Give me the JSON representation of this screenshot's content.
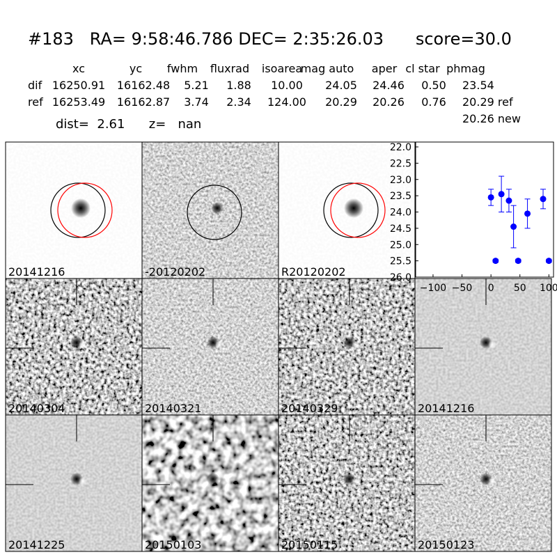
{
  "header": {
    "title": "#183   RA= 9:58:46.786 DEC= 2:35:26.03      score=30.0"
  },
  "table": {
    "columns": [
      "xc",
      "yc",
      "fwhm",
      "fluxrad",
      "isoarea",
      "mag auto",
      "aper",
      "cl star",
      "phmag"
    ],
    "rows": [
      [
        "dif",
        "16250.91",
        "16162.48",
        "5.21",
        "1.88",
        "10.00",
        "24.05",
        "24.46",
        "0.50",
        "23.54"
      ],
      [
        "ref",
        "16253.49",
        "16162.87",
        "3.74",
        "2.34",
        "124.00",
        "20.29",
        "20.26",
        "0.76",
        "20.29 ref"
      ]
    ],
    "note": "20.26 new"
  },
  "summary": "dist=  2.61      z=   nan",
  "stamps": [
    {
      "label": "20141216"
    },
    {
      "label": "-20120202"
    },
    {
      "label": "R20120202"
    },
    {
      "label": "20140304"
    },
    {
      "label": "20140321"
    },
    {
      "label": "20140329"
    },
    {
      "label": "20141216",
      "label_color": "#ff0000"
    },
    {
      "label": "20141225"
    },
    {
      "label": "20150103"
    },
    {
      "label": "20150115"
    },
    {
      "label": "20150123"
    }
  ],
  "chart_data": {
    "type": "errorbar",
    "color": "#0000ff",
    "x": [
      0,
      8,
      18,
      31,
      39,
      47,
      63,
      90,
      100
    ],
    "values": [
      23.55,
      25.5,
      23.45,
      23.65,
      24.45,
      25.5,
      24.05,
      23.6,
      25.5
    ],
    "errors": [
      0.25,
      0.05,
      0.55,
      0.35,
      0.65,
      0.05,
      0.45,
      0.3,
      0.05
    ],
    "xlim": [
      -130,
      108
    ],
    "ylim": [
      26,
      21.85
    ],
    "xticks": [
      {
        "value": -100,
        "label": "−100"
      },
      {
        "value": -50,
        "label": "−50"
      },
      0,
      50,
      100
    ],
    "yticks": [
      {
        "value": 22,
        "label": "22.0"
      },
      22.5,
      {
        "value": 23,
        "label": "23.0"
      },
      23.5,
      {
        "value": 24,
        "label": "24.0"
      },
      24.5,
      {
        "value": 25,
        "label": "25.0"
      },
      25.5,
      {
        "value": 26,
        "label": "26.0"
      }
    ]
  }
}
